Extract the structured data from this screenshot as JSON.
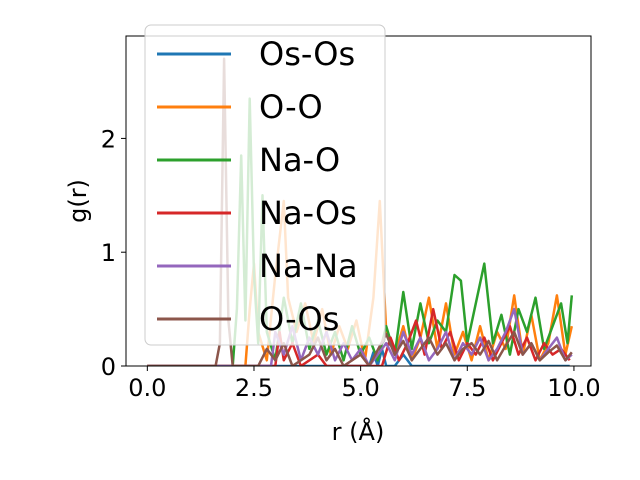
{
  "chart_data": {
    "type": "line",
    "xlabel": "r (Å)",
    "ylabel": "g(r)",
    "xlim": [
      -0.5,
      10.4
    ],
    "ylim": [
      0,
      2.9
    ],
    "xticks": [
      0.0,
      2.5,
      5.0,
      7.5,
      10.0
    ],
    "xtick_labels": [
      "0.0",
      "2.5",
      "5.0",
      "7.5",
      "10.0"
    ],
    "yticks": [
      0,
      1,
      2
    ],
    "ytick_labels": [
      "0",
      "1",
      "2"
    ],
    "grid": false,
    "legend_position": "upper-left",
    "series": [
      {
        "name": "Os-Os",
        "color": "#1f77b4",
        "points": [
          [
            0.0,
            0
          ],
          [
            5.2,
            0
          ],
          [
            5.3,
            0.12
          ],
          [
            5.4,
            0.0
          ],
          [
            5.5,
            0.15
          ],
          [
            5.6,
            0
          ],
          [
            5.8,
            0.0
          ],
          [
            6.0,
            0.1
          ],
          [
            6.2,
            0
          ],
          [
            7.0,
            0
          ],
          [
            8.0,
            0
          ],
          [
            9.0,
            0
          ],
          [
            9.9,
            0
          ]
        ]
      },
      {
        "name": "O-O",
        "color": "#ff7f0e",
        "points": [
          [
            0.0,
            0
          ],
          [
            2.3,
            0
          ],
          [
            2.4,
            0.5
          ],
          [
            2.5,
            0.9
          ],
          [
            2.6,
            0.3
          ],
          [
            2.8,
            0.05
          ],
          [
            3.0,
            0.8
          ],
          [
            3.2,
            1.45
          ],
          [
            3.3,
            0.6
          ],
          [
            3.5,
            0.3
          ],
          [
            3.7,
            0.55
          ],
          [
            3.9,
            0.2
          ],
          [
            4.1,
            0.5
          ],
          [
            4.3,
            0.1
          ],
          [
            4.5,
            0.35
          ],
          [
            4.7,
            0.15
          ],
          [
            4.9,
            0.4
          ],
          [
            5.1,
            0.05
          ],
          [
            5.3,
            0.6
          ],
          [
            5.45,
            1.45
          ],
          [
            5.6,
            0.3
          ],
          [
            5.8,
            0.1
          ],
          [
            6.0,
            0.35
          ],
          [
            6.2,
            0.05
          ],
          [
            6.4,
            0.25
          ],
          [
            6.6,
            0.6
          ],
          [
            6.8,
            0.15
          ],
          [
            7.0,
            0.55
          ],
          [
            7.2,
            0.1
          ],
          [
            7.4,
            0.3
          ],
          [
            7.6,
            0.05
          ],
          [
            7.8,
            0.35
          ],
          [
            8.0,
            0.05
          ],
          [
            8.2,
            0.3
          ],
          [
            8.4,
            0.15
          ],
          [
            8.6,
            0.62
          ],
          [
            8.8,
            0.1
          ],
          [
            9.0,
            0.45
          ],
          [
            9.2,
            0.05
          ],
          [
            9.4,
            0.2
          ],
          [
            9.6,
            0.62
          ],
          [
            9.8,
            0.1
          ],
          [
            9.95,
            0.35
          ]
        ]
      },
      {
        "name": "Na-O",
        "color": "#2ca02c",
        "points": [
          [
            0.0,
            0
          ],
          [
            2.0,
            0
          ],
          [
            2.1,
            0.5
          ],
          [
            2.2,
            1.85
          ],
          [
            2.3,
            0.4
          ],
          [
            2.4,
            2.35
          ],
          [
            2.5,
            0.8
          ],
          [
            2.6,
            0.2
          ],
          [
            2.7,
            1.5
          ],
          [
            2.8,
            0.3
          ],
          [
            3.0,
            0.05
          ],
          [
            3.2,
            0.6
          ],
          [
            3.4,
            0.2
          ],
          [
            3.6,
            0.55
          ],
          [
            3.8,
            0.15
          ],
          [
            4.0,
            0.4
          ],
          [
            4.2,
            0.1
          ],
          [
            4.4,
            0.3
          ],
          [
            4.6,
            0.05
          ],
          [
            4.8,
            0.35
          ],
          [
            5.0,
            0.1
          ],
          [
            5.2,
            0.25
          ],
          [
            5.4,
            0.05
          ],
          [
            5.6,
            0.35
          ],
          [
            5.8,
            0.1
          ],
          [
            6.0,
            0.65
          ],
          [
            6.2,
            0.15
          ],
          [
            6.4,
            0.55
          ],
          [
            6.6,
            0.2
          ],
          [
            6.8,
            0.4
          ],
          [
            7.0,
            0.3
          ],
          [
            7.2,
            0.8
          ],
          [
            7.35,
            0.75
          ],
          [
            7.5,
            0.2
          ],
          [
            7.7,
            0.55
          ],
          [
            7.9,
            0.9
          ],
          [
            8.1,
            0.2
          ],
          [
            8.3,
            0.45
          ],
          [
            8.5,
            0.1
          ],
          [
            8.7,
            0.5
          ],
          [
            8.9,
            0.3
          ],
          [
            9.1,
            0.6
          ],
          [
            9.3,
            0.15
          ],
          [
            9.5,
            0.35
          ],
          [
            9.7,
            0.55
          ],
          [
            9.85,
            0.2
          ],
          [
            9.95,
            0.62
          ]
        ]
      },
      {
        "name": "Na-Os",
        "color": "#d62728",
        "points": [
          [
            0.0,
            0
          ],
          [
            3.0,
            0
          ],
          [
            3.1,
            0.3
          ],
          [
            3.2,
            0.05
          ],
          [
            3.4,
            0.2
          ],
          [
            3.6,
            0
          ],
          [
            4.0,
            0.1
          ],
          [
            4.2,
            0
          ],
          [
            5.5,
            0
          ],
          [
            5.7,
            0.25
          ],
          [
            5.9,
            0.05
          ],
          [
            6.1,
            0.2
          ],
          [
            6.3,
            0.4
          ],
          [
            6.5,
            0.1
          ],
          [
            6.7,
            0.5
          ],
          [
            6.9,
            0.15
          ],
          [
            7.1,
            0.3
          ],
          [
            7.3,
            0.05
          ],
          [
            7.5,
            0.2
          ],
          [
            7.7,
            0.1
          ],
          [
            7.9,
            0.25
          ],
          [
            8.1,
            0.05
          ],
          [
            8.3,
            0.2
          ],
          [
            8.5,
            0.35
          ],
          [
            8.7,
            0.1
          ],
          [
            8.9,
            0.25
          ],
          [
            9.1,
            0.05
          ],
          [
            9.3,
            0.2
          ],
          [
            9.5,
            0.1
          ],
          [
            9.7,
            0.15
          ],
          [
            9.9,
            0.05
          ]
        ]
      },
      {
        "name": "Na-Na",
        "color": "#9467bd",
        "points": [
          [
            0.0,
            0
          ],
          [
            2.9,
            0
          ],
          [
            3.0,
            0.3
          ],
          [
            3.2,
            0.1
          ],
          [
            3.4,
            0.35
          ],
          [
            3.6,
            0.05
          ],
          [
            3.8,
            0.25
          ],
          [
            4.0,
            0.1
          ],
          [
            4.2,
            0.3
          ],
          [
            4.4,
            0.05
          ],
          [
            4.6,
            0.2
          ],
          [
            4.8,
            0.05
          ],
          [
            5.0,
            0.15
          ],
          [
            5.2,
            0
          ],
          [
            5.6,
            0.2
          ],
          [
            5.8,
            0.05
          ],
          [
            6.0,
            0.3
          ],
          [
            6.2,
            0.1
          ],
          [
            6.4,
            0.25
          ],
          [
            6.6,
            0.05
          ],
          [
            6.8,
            0.15
          ],
          [
            7.0,
            0.3
          ],
          [
            7.2,
            0.05
          ],
          [
            7.4,
            0.2
          ],
          [
            7.6,
            0.1
          ],
          [
            7.8,
            0.25
          ],
          [
            8.0,
            0.05
          ],
          [
            8.2,
            0.15
          ],
          [
            8.4,
            0.3
          ],
          [
            8.6,
            0.5
          ],
          [
            8.8,
            0.1
          ],
          [
            9.0,
            0.2
          ],
          [
            9.2,
            0.05
          ],
          [
            9.4,
            0.15
          ],
          [
            9.6,
            0.25
          ],
          [
            9.8,
            0.05
          ],
          [
            9.95,
            0.1
          ]
        ]
      },
      {
        "name": "O-Os",
        "color": "#8c564b",
        "points": [
          [
            0.0,
            0
          ],
          [
            1.6,
            0
          ],
          [
            1.7,
            0.2
          ],
          [
            1.8,
            2.7
          ],
          [
            1.9,
            0.4
          ],
          [
            2.0,
            0
          ],
          [
            2.6,
            0
          ],
          [
            2.8,
            0.15
          ],
          [
            3.0,
            0.05
          ],
          [
            3.2,
            0.2
          ],
          [
            3.4,
            0
          ],
          [
            3.8,
            0.1
          ],
          [
            4.0,
            0.25
          ],
          [
            4.2,
            0.05
          ],
          [
            4.4,
            0.15
          ],
          [
            4.6,
            0
          ],
          [
            5.0,
            0.1
          ],
          [
            5.2,
            0
          ],
          [
            5.6,
            0.28
          ],
          [
            5.8,
            0.1
          ],
          [
            6.0,
            0.22
          ],
          [
            6.2,
            0.05
          ],
          [
            6.4,
            0.15
          ],
          [
            6.6,
            0.25
          ],
          [
            6.8,
            0.1
          ],
          [
            7.0,
            0.2
          ],
          [
            7.2,
            0.05
          ],
          [
            7.4,
            0.15
          ],
          [
            7.6,
            0.2
          ],
          [
            7.8,
            0.1
          ],
          [
            8.0,
            0.22
          ],
          [
            8.2,
            0.05
          ],
          [
            8.4,
            0.18
          ],
          [
            8.6,
            0.3
          ],
          [
            8.8,
            0.1
          ],
          [
            9.0,
            0.2
          ],
          [
            9.2,
            0.05
          ],
          [
            9.4,
            0.12
          ],
          [
            9.6,
            0.18
          ],
          [
            9.8,
            0.05
          ],
          [
            9.95,
            0.12
          ]
        ]
      }
    ]
  }
}
